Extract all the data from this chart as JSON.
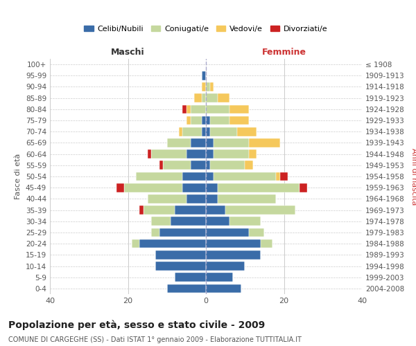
{
  "age_groups": [
    "0-4",
    "5-9",
    "10-14",
    "15-19",
    "20-24",
    "25-29",
    "30-34",
    "35-39",
    "40-44",
    "45-49",
    "50-54",
    "55-59",
    "60-64",
    "65-69",
    "70-74",
    "75-79",
    "80-84",
    "85-89",
    "90-94",
    "95-99",
    "100+"
  ],
  "birth_years": [
    "2004-2008",
    "1999-2003",
    "1994-1998",
    "1989-1993",
    "1984-1988",
    "1979-1983",
    "1974-1978",
    "1969-1973",
    "1964-1968",
    "1959-1963",
    "1954-1958",
    "1949-1953",
    "1944-1948",
    "1939-1943",
    "1934-1938",
    "1929-1933",
    "1924-1928",
    "1919-1923",
    "1914-1918",
    "1909-1913",
    "≤ 1908"
  ],
  "colors": {
    "celibi": "#3a6ca8",
    "coniugati": "#c5d89e",
    "vedovi": "#f5c85c",
    "divorziati": "#cc2222"
  },
  "maschi": {
    "celibi": [
      10,
      8,
      13,
      13,
      17,
      12,
      9,
      8,
      5,
      6,
      6,
      4,
      5,
      4,
      1,
      1,
      0,
      0,
      0,
      1,
      0
    ],
    "coniugati": [
      0,
      0,
      0,
      0,
      2,
      2,
      5,
      8,
      10,
      15,
      12,
      7,
      9,
      6,
      5,
      3,
      4,
      1,
      0,
      0,
      0
    ],
    "vedovi": [
      0,
      0,
      0,
      0,
      0,
      0,
      0,
      0,
      0,
      0,
      0,
      0,
      0,
      0,
      1,
      1,
      1,
      2,
      1,
      0,
      0
    ],
    "divorziati": [
      0,
      0,
      0,
      0,
      0,
      0,
      0,
      1,
      0,
      2,
      0,
      1,
      1,
      0,
      0,
      0,
      1,
      0,
      0,
      0,
      0
    ]
  },
  "femmine": {
    "celibi": [
      9,
      7,
      10,
      14,
      14,
      11,
      6,
      5,
      3,
      3,
      2,
      1,
      2,
      2,
      1,
      1,
      0,
      0,
      0,
      0,
      0
    ],
    "coniugati": [
      0,
      0,
      0,
      0,
      3,
      4,
      8,
      18,
      15,
      21,
      16,
      9,
      9,
      9,
      7,
      5,
      6,
      3,
      1,
      0,
      0
    ],
    "vedovi": [
      0,
      0,
      0,
      0,
      0,
      0,
      0,
      0,
      0,
      0,
      1,
      2,
      2,
      8,
      5,
      5,
      5,
      3,
      1,
      0,
      0
    ],
    "divorziati": [
      0,
      0,
      0,
      0,
      0,
      0,
      0,
      0,
      0,
      2,
      2,
      0,
      0,
      0,
      0,
      0,
      0,
      0,
      0,
      0,
      0
    ]
  },
  "title": "Popolazione per età, sesso e stato civile - 2009",
  "subtitle": "COMUNE DI CARGEGHE (SS) - Dati ISTAT 1° gennaio 2009 - Elaborazione TUTTITALIA.IT",
  "xlabel_left": "Maschi",
  "xlabel_right": "Femmine",
  "ylabel_left": "Fasce di età",
  "ylabel_right": "Anni di nascita",
  "xlim": 40,
  "legend_labels": [
    "Celibi/Nubili",
    "Coniugati/e",
    "Vedovi/e",
    "Divorziati/e"
  ],
  "bg_color": "#ffffff",
  "grid_color": "#cccccc"
}
